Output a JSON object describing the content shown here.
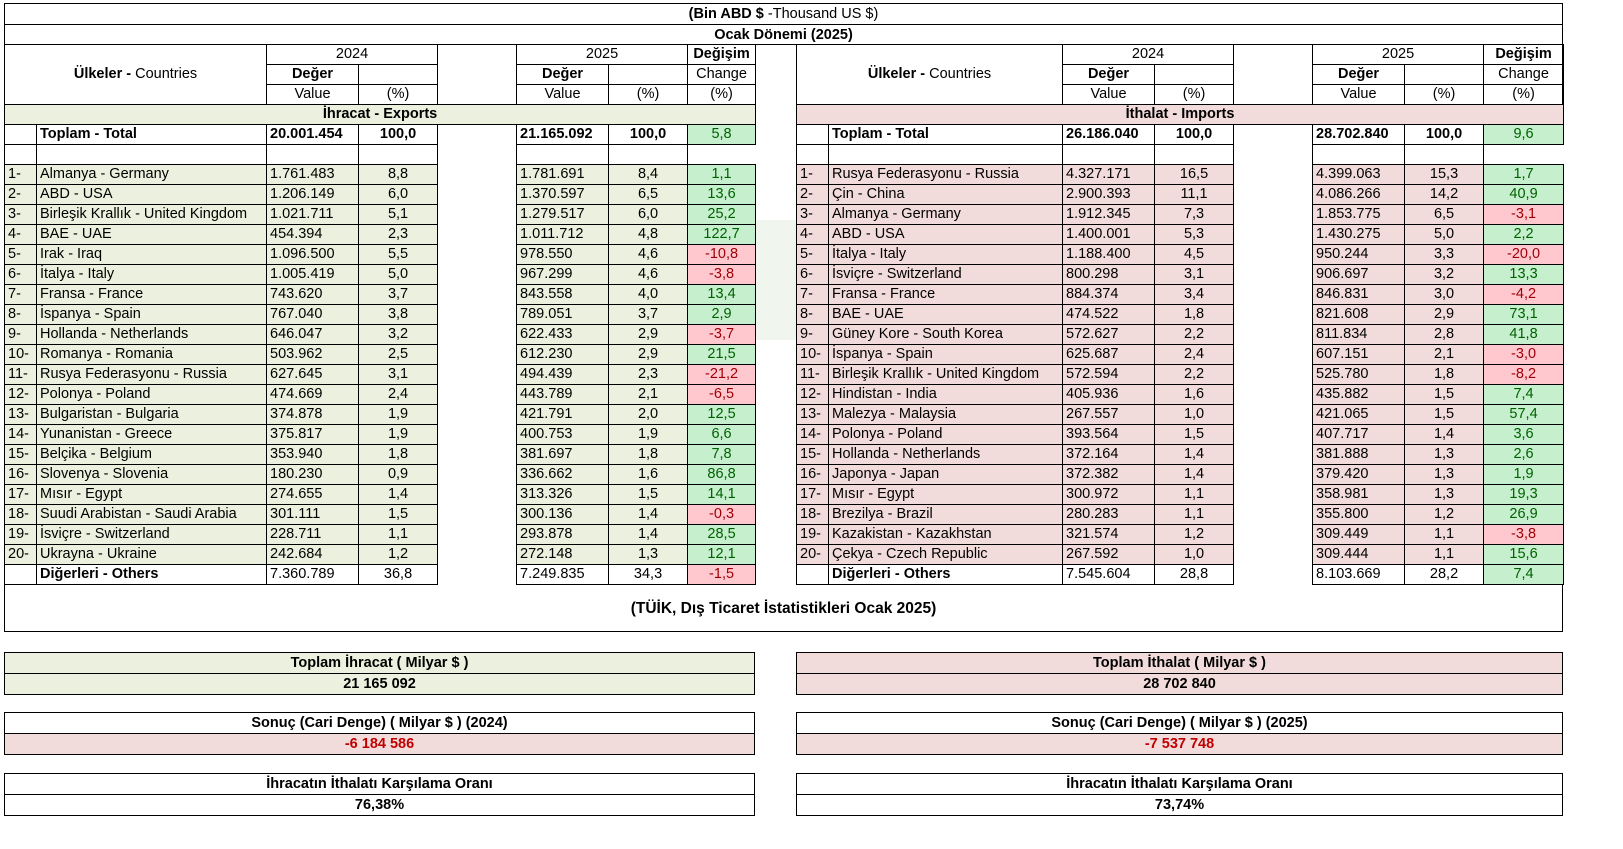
{
  "header": {
    "unit_bold": "(Bin ABD $",
    "unit_rest": " -Thousand US $)",
    "period": "Ocak Dönemi (2025)"
  },
  "columns": {
    "countries_bold": "Ülkeler -",
    "countries_rest": " Countries",
    "year1": "2024",
    "year2": "2025",
    "change_tr": "Değişim",
    "change_en": "Change",
    "value_tr": "Değer",
    "value_en": "Value",
    "pct": "(%)"
  },
  "exports": {
    "section_title": "İhracat - Exports",
    "total": {
      "name": "Toplam - Total",
      "v2024": "20.001.454",
      "p2024": "100,0",
      "v2025": "21.165.092",
      "p2025": "100,0",
      "change": "5,8"
    },
    "rows": [
      {
        "rank": "1-",
        "name": "Almanya - Germany",
        "v2024": "1.761.483",
        "p2024": "8,8",
        "v2025": "1.781.691",
        "p2025": "8,4",
        "change": "1,1"
      },
      {
        "rank": "2-",
        "name": "ABD - USA",
        "v2024": "1.206.149",
        "p2024": "6,0",
        "v2025": "1.370.597",
        "p2025": "6,5",
        "change": "13,6"
      },
      {
        "rank": "3-",
        "name": "Birleşik Krallık - United Kingdom",
        "v2024": "1.021.711",
        "p2024": "5,1",
        "v2025": "1.279.517",
        "p2025": "6,0",
        "change": "25,2"
      },
      {
        "rank": "4-",
        "name": "BAE - UAE",
        "v2024": "454.394",
        "p2024": "2,3",
        "v2025": "1.011.712",
        "p2025": "4,8",
        "change": "122,7"
      },
      {
        "rank": "5-",
        "name": "Irak - Iraq",
        "v2024": "1.096.500",
        "p2024": "5,5",
        "v2025": "978.550",
        "p2025": "4,6",
        "change": "-10,8"
      },
      {
        "rank": "6-",
        "name": "İtalya - Italy",
        "v2024": "1.005.419",
        "p2024": "5,0",
        "v2025": "967.299",
        "p2025": "4,6",
        "change": "-3,8"
      },
      {
        "rank": "7-",
        "name": "Fransa - France",
        "v2024": "743.620",
        "p2024": "3,7",
        "v2025": "843.558",
        "p2025": "4,0",
        "change": "13,4"
      },
      {
        "rank": "8-",
        "name": "İspanya - Spain",
        "v2024": "767.040",
        "p2024": "3,8",
        "v2025": "789.051",
        "p2025": "3,7",
        "change": "2,9"
      },
      {
        "rank": "9-",
        "name": "Hollanda - Netherlands",
        "v2024": "646.047",
        "p2024": "3,2",
        "v2025": "622.433",
        "p2025": "2,9",
        "change": "-3,7"
      },
      {
        "rank": "10-",
        "name": "Romanya - Romania",
        "v2024": "503.962",
        "p2024": "2,5",
        "v2025": "612.230",
        "p2025": "2,9",
        "change": "21,5"
      },
      {
        "rank": "11-",
        "name": "Rusya Federasyonu - Russia",
        "v2024": "627.645",
        "p2024": "3,1",
        "v2025": "494.439",
        "p2025": "2,3",
        "change": "-21,2"
      },
      {
        "rank": "12-",
        "name": "Polonya - Poland",
        "v2024": "474.669",
        "p2024": "2,4",
        "v2025": "443.789",
        "p2025": "2,1",
        "change": "-6,5"
      },
      {
        "rank": "13-",
        "name": "Bulgaristan - Bulgaria",
        "v2024": "374.878",
        "p2024": "1,9",
        "v2025": "421.791",
        "p2025": "2,0",
        "change": "12,5"
      },
      {
        "rank": "14-",
        "name": "Yunanistan - Greece",
        "v2024": "375.817",
        "p2024": "1,9",
        "v2025": "400.753",
        "p2025": "1,9",
        "change": "6,6"
      },
      {
        "rank": "15-",
        "name": "Belçika - Belgium",
        "v2024": "353.940",
        "p2024": "1,8",
        "v2025": "381.697",
        "p2025": "1,8",
        "change": "7,8"
      },
      {
        "rank": "16-",
        "name": "Slovenya - Slovenia",
        "v2024": "180.230",
        "p2024": "0,9",
        "v2025": "336.662",
        "p2025": "1,6",
        "change": "86,8"
      },
      {
        "rank": "17-",
        "name": "Mısır - Egypt",
        "v2024": "274.655",
        "p2024": "1,4",
        "v2025": "313.326",
        "p2025": "1,5",
        "change": "14,1"
      },
      {
        "rank": "18-",
        "name": "Suudi Arabistan - Saudi Arabia",
        "v2024": "301.111",
        "p2024": "1,5",
        "v2025": "300.136",
        "p2025": "1,4",
        "change": "-0,3"
      },
      {
        "rank": "19-",
        "name": "İsviçre - Switzerland",
        "v2024": "228.711",
        "p2024": "1,1",
        "v2025": "293.878",
        "p2025": "1,4",
        "change": "28,5"
      },
      {
        "rank": "20-",
        "name": "Ukrayna - Ukraine",
        "v2024": "242.684",
        "p2024": "1,2",
        "v2025": "272.148",
        "p2025": "1,3",
        "change": "12,1"
      }
    ],
    "others": {
      "name": "Diğerleri - Others",
      "v2024": "7.360.789",
      "p2024": "36,8",
      "v2025": "7.249.835",
      "p2025": "34,3",
      "change": "-1,5"
    }
  },
  "imports": {
    "section_title": "İthalat - Imports",
    "total": {
      "name": "Toplam - Total",
      "v2024": "26.186.040",
      "p2024": "100,0",
      "v2025": "28.702.840",
      "p2025": "100,0",
      "change": "9,6"
    },
    "rows": [
      {
        "rank": "1-",
        "name": "Rusya Federasyonu - Russia",
        "v2024": "4.327.171",
        "p2024": "16,5",
        "v2025": "4.399.063",
        "p2025": "15,3",
        "change": "1,7"
      },
      {
        "rank": "2-",
        "name": "Çin - China",
        "v2024": "2.900.393",
        "p2024": "11,1",
        "v2025": "4.086.266",
        "p2025": "14,2",
        "change": "40,9"
      },
      {
        "rank": "3-",
        "name": "Almanya - Germany",
        "v2024": "1.912.345",
        "p2024": "7,3",
        "v2025": "1.853.775",
        "p2025": "6,5",
        "change": "-3,1"
      },
      {
        "rank": "4-",
        "name": "ABD - USA",
        "v2024": "1.400.001",
        "p2024": "5,3",
        "v2025": "1.430.275",
        "p2025": "5,0",
        "change": "2,2"
      },
      {
        "rank": "5-",
        "name": "İtalya - Italy",
        "v2024": "1.188.400",
        "p2024": "4,5",
        "v2025": "950.244",
        "p2025": "3,3",
        "change": "-20,0"
      },
      {
        "rank": "6-",
        "name": "İsviçre - Switzerland",
        "v2024": "800.298",
        "p2024": "3,1",
        "v2025": "906.697",
        "p2025": "3,2",
        "change": "13,3"
      },
      {
        "rank": "7-",
        "name": "Fransa - France",
        "v2024": "884.374",
        "p2024": "3,4",
        "v2025": "846.831",
        "p2025": "3,0",
        "change": "-4,2"
      },
      {
        "rank": "8-",
        "name": "BAE - UAE",
        "v2024": "474.522",
        "p2024": "1,8",
        "v2025": "821.608",
        "p2025": "2,9",
        "change": "73,1"
      },
      {
        "rank": "9-",
        "name": "Güney Kore - South Korea",
        "v2024": "572.627",
        "p2024": "2,2",
        "v2025": "811.834",
        "p2025": "2,8",
        "change": "41,8"
      },
      {
        "rank": "10-",
        "name": "İspanya - Spain",
        "v2024": "625.687",
        "p2024": "2,4",
        "v2025": "607.151",
        "p2025": "2,1",
        "change": "-3,0"
      },
      {
        "rank": "11-",
        "name": "Birleşik Krallık - United Kingdom",
        "v2024": "572.594",
        "p2024": "2,2",
        "v2025": "525.780",
        "p2025": "1,8",
        "change": "-8,2"
      },
      {
        "rank": "12-",
        "name": "Hindistan - India",
        "v2024": "405.936",
        "p2024": "1,6",
        "v2025": "435.882",
        "p2025": "1,5",
        "change": "7,4"
      },
      {
        "rank": "13-",
        "name": "Malezya - Malaysia",
        "v2024": "267.557",
        "p2024": "1,0",
        "v2025": "421.065",
        "p2025": "1,5",
        "change": "57,4"
      },
      {
        "rank": "14-",
        "name": "Polonya - Poland",
        "v2024": "393.564",
        "p2024": "1,5",
        "v2025": "407.717",
        "p2025": "1,4",
        "change": "3,6"
      },
      {
        "rank": "15-",
        "name": "Hollanda - Netherlands",
        "v2024": "372.164",
        "p2024": "1,4",
        "v2025": "381.888",
        "p2025": "1,3",
        "change": "2,6"
      },
      {
        "rank": "16-",
        "name": "Japonya - Japan",
        "v2024": "372.382",
        "p2024": "1,4",
        "v2025": "379.420",
        "p2025": "1,3",
        "change": "1,9"
      },
      {
        "rank": "17-",
        "name": "Mısır - Egypt",
        "v2024": "300.972",
        "p2024": "1,1",
        "v2025": "358.981",
        "p2025": "1,3",
        "change": "19,3"
      },
      {
        "rank": "18-",
        "name": "Brezilya - Brazil",
        "v2024": "280.283",
        "p2024": "1,1",
        "v2025": "355.800",
        "p2025": "1,2",
        "change": "26,9"
      },
      {
        "rank": "19-",
        "name": "Kazakistan - Kazakhstan",
        "v2024": "321.574",
        "p2024": "1,2",
        "v2025": "309.449",
        "p2025": "1,1",
        "change": "-3,8"
      },
      {
        "rank": "20-",
        "name": "Çekya - Czech Republic",
        "v2024": "267.592",
        "p2024": "1,0",
        "v2025": "309.444",
        "p2025": "1,1",
        "change": "15,6"
      }
    ],
    "others": {
      "name": "Diğerleri - Others",
      "v2024": "7.545.604",
      "p2024": "28,8",
      "v2025": "8.103.669",
      "p2025": "28,2",
      "change": "7,4"
    }
  },
  "source": "(TÜİK, Dış Ticaret İstatistikleri Ocak 2025)",
  "summary": {
    "total_exports_label": "Toplam İhracat ( Milyar $ )",
    "total_exports_value": "21 165 092",
    "total_imports_label": "Toplam İthalat ( Milyar $ )",
    "total_imports_value": "28 702 840",
    "balance_2024_label": "Sonuç (Cari Denge) ( Milyar $ ) (2024)",
    "balance_2024_value": "-6 184 586",
    "balance_2025_label": "Sonuç (Cari Denge) ( Milyar $ ) (2025)",
    "balance_2025_value": "-7 537 748",
    "coverage_label_left": "İhracatın İthalatı Karşılama Oranı",
    "coverage_value_left": "76,38%",
    "coverage_label_right": "İhracatın İthalatı Karşılama Oranı",
    "coverage_value_right": "73,74%"
  },
  "colors": {
    "export_bg": "#ebf1de",
    "import_bg": "#f2dcdb",
    "positive": "#c6efce",
    "negative": "#ffc7ce"
  }
}
